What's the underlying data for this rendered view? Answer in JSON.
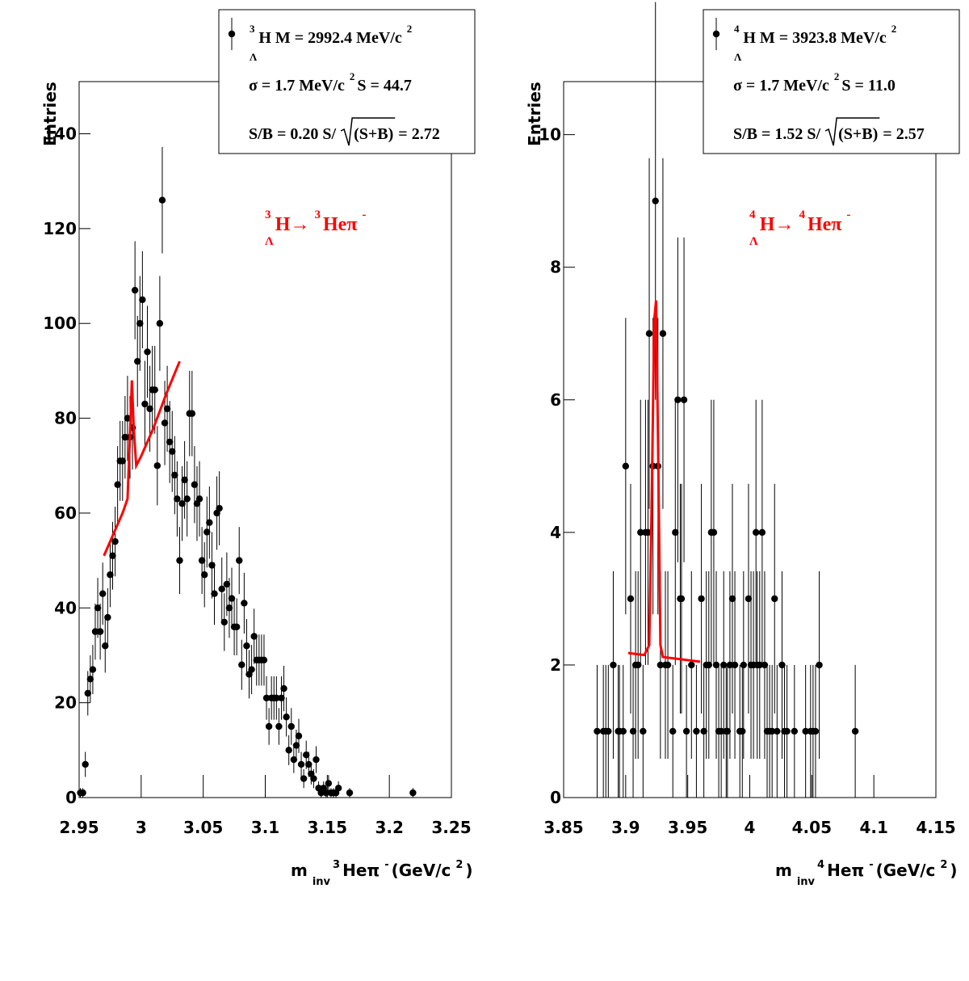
{
  "chart_data": [
    {
      "type": "scatter",
      "ylabel": "Entries",
      "xlabel": [
        "m",
        "inv",
        "3",
        "Heπ",
        "-",
        "(GeV/c",
        "2",
        ")"
      ],
      "annotation": [
        "3",
        "Λ",
        "H→",
        "3",
        "Heπ",
        "-"
      ],
      "legend": {
        "mass": [
          "3",
          "Λ",
          "H M = 2992.4 MeV/c",
          "2"
        ],
        "sigma": [
          "σ = 1.7 MeV/c",
          "2",
          "S = 44.7"
        ],
        "ratio": [
          "S/B = 0.20  S/",
          "(S+B)",
          "= 2.72"
        ]
      },
      "xlim": [
        2.95,
        3.25
      ],
      "xticks": [
        2.95,
        3,
        3.05,
        3.1,
        3.15,
        3.2,
        3.25
      ],
      "ylim": [
        0,
        151
      ],
      "yticks": [
        0,
        20,
        40,
        60,
        80,
        100,
        120,
        140
      ],
      "series": [
        {
          "type": "scatter",
          "color": "#000000",
          "x": [
            2.951,
            2.953,
            2.955,
            2.957,
            2.959,
            2.961,
            2.963,
            2.965,
            2.967,
            2.969,
            2.971,
            2.973,
            2.975,
            2.977,
            2.979,
            2.981,
            2.983,
            2.985,
            2.987,
            2.989,
            2.991,
            2.993,
            2.995,
            2.997,
            2.999,
            3.001,
            3.003,
            3.005,
            3.007,
            3.009,
            3.011,
            3.013,
            3.015,
            3.017,
            3.019,
            3.021,
            3.023,
            3.025,
            3.027,
            3.029,
            3.031,
            3.033,
            3.035,
            3.037,
            3.039,
            3.041,
            3.043,
            3.045,
            3.047,
            3.049,
            3.051,
            3.053,
            3.055,
            3.057,
            3.059,
            3.061,
            3.063,
            3.065,
            3.067,
            3.069,
            3.071,
            3.073,
            3.075,
            3.077,
            3.079,
            3.081,
            3.083,
            3.085,
            3.087,
            3.089,
            3.091,
            3.093,
            3.095,
            3.097,
            3.099,
            3.101,
            3.103,
            3.105,
            3.107,
            3.109,
            3.111,
            3.113,
            3.115,
            3.117,
            3.119,
            3.121,
            3.123,
            3.125,
            3.127,
            3.129,
            3.131,
            3.133,
            3.135,
            3.137,
            3.139,
            3.141,
            3.143,
            3.145,
            3.147,
            3.149,
            3.151,
            3.153,
            3.155,
            3.157,
            3.159,
            3.168,
            3.219
          ],
          "values": [
            1,
            1,
            7,
            22,
            25,
            27,
            35,
            40,
            35,
            43,
            32,
            38,
            47,
            51,
            54,
            66,
            71,
            71,
            76,
            80,
            76,
            78,
            107,
            92,
            100,
            105,
            83,
            94,
            82,
            86,
            86,
            70,
            100,
            126,
            79,
            82,
            75,
            73,
            68,
            63,
            50,
            62,
            67,
            63,
            81,
            81,
            66,
            62,
            63,
            50,
            47,
            56,
            58,
            49,
            43,
            60,
            61,
            44,
            37,
            45,
            40,
            42,
            36,
            36,
            50,
            28,
            41,
            32,
            26,
            27,
            34,
            29,
            29,
            29,
            29,
            21,
            15,
            21,
            21,
            21,
            15,
            21,
            23,
            17,
            10,
            15,
            8,
            11,
            13,
            7,
            4,
            9,
            7,
            5,
            4,
            8,
            2,
            1,
            2,
            1,
            3,
            1,
            1,
            1,
            2,
            1,
            1
          ]
        },
        {
          "type": "line",
          "color": "#ff0000",
          "x": [
            2.97,
            2.975,
            2.98,
            2.985,
            2.989,
            2.9915,
            2.9925,
            2.994,
            2.996,
            3.0,
            3.01,
            3.02,
            3.031
          ],
          "values": [
            51,
            54,
            57,
            60,
            63,
            80,
            88,
            78,
            70,
            72,
            78,
            85,
            92
          ]
        }
      ]
    },
    {
      "type": "scatter",
      "ylabel": "Entries",
      "xlabel": [
        "m",
        "inv",
        "4",
        "Heπ",
        "-",
        " (GeV/c",
        "2",
        ")"
      ],
      "annotation": [
        "4",
        "Λ",
        "H→",
        "4",
        "Heπ",
        "-"
      ],
      "legend": {
        "mass": [
          "4",
          "Λ",
          "H M = 3923.8 MeV/c",
          "2"
        ],
        "sigma": [
          "σ = 1.7 MeV/c",
          "2",
          "S = 11.0"
        ],
        "ratio": [
          "S/B = 1.52  S/",
          "(S+B)",
          "= 2.57"
        ]
      },
      "xlim": [
        3.85,
        4.15
      ],
      "xticks": [
        3.85,
        3.9,
        3.95,
        4,
        4.05,
        4.1,
        4.15
      ],
      "ylim": [
        0,
        10.8
      ],
      "yticks": [
        0,
        2,
        4,
        6,
        8,
        10
      ],
      "series": [
        {
          "type": "scatter",
          "color": "#000000",
          "x": [
            3.877,
            3.882,
            3.884,
            3.886,
            3.89,
            3.894,
            3.895,
            3.898,
            3.9,
            3.904,
            3.906,
            3.908,
            3.91,
            3.912,
            3.914,
            3.916,
            3.918,
            3.919,
            3.922,
            3.924,
            3.926,
            3.928,
            3.93,
            3.932,
            3.934,
            3.938,
            3.94,
            3.942,
            3.944,
            3.945,
            3.947,
            3.949,
            3.953,
            3.957,
            3.961,
            3.963,
            3.965,
            3.967,
            3.969,
            3.971,
            3.973,
            3.975,
            3.977,
            3.979,
            3.981,
            3.982,
            3.984,
            3.986,
            3.988,
            3.992,
            3.994,
            3.995,
            3.999,
            4.001,
            4.003,
            4.005,
            4.006,
            4.008,
            4.01,
            4.012,
            4.014,
            4.016,
            4.018,
            4.02,
            4.022,
            4.026,
            4.028,
            4.03,
            4.036,
            4.045,
            4.049,
            4.051,
            4.053,
            4.056,
            4.085
          ],
          "values": [
            1,
            1,
            1,
            1,
            2,
            1,
            1,
            1,
            5,
            3,
            1,
            2,
            2,
            4,
            1,
            4,
            4,
            7,
            5,
            9,
            5,
            2,
            7,
            2,
            2,
            1,
            4,
            6,
            3,
            3,
            6,
            1,
            2,
            1,
            3,
            1,
            2,
            2,
            4,
            4,
            2,
            1,
            1,
            2,
            1,
            1,
            2,
            3,
            2,
            1,
            1,
            2,
            3,
            2,
            2,
            4,
            2,
            2,
            4,
            2,
            1,
            1,
            1,
            3,
            1,
            2,
            1,
            1,
            1,
            1,
            1,
            1,
            1,
            2,
            1
          ]
        },
        {
          "type": "line",
          "color": "#ff0000",
          "x": [
            3.902,
            3.915,
            3.919,
            3.921,
            3.923,
            3.9245,
            3.926,
            3.928,
            3.93,
            3.96
          ],
          "values": [
            2.18,
            2.15,
            2.3,
            4.5,
            7.2,
            7.5,
            5.5,
            2.3,
            2.12,
            2.05
          ]
        }
      ]
    }
  ]
}
